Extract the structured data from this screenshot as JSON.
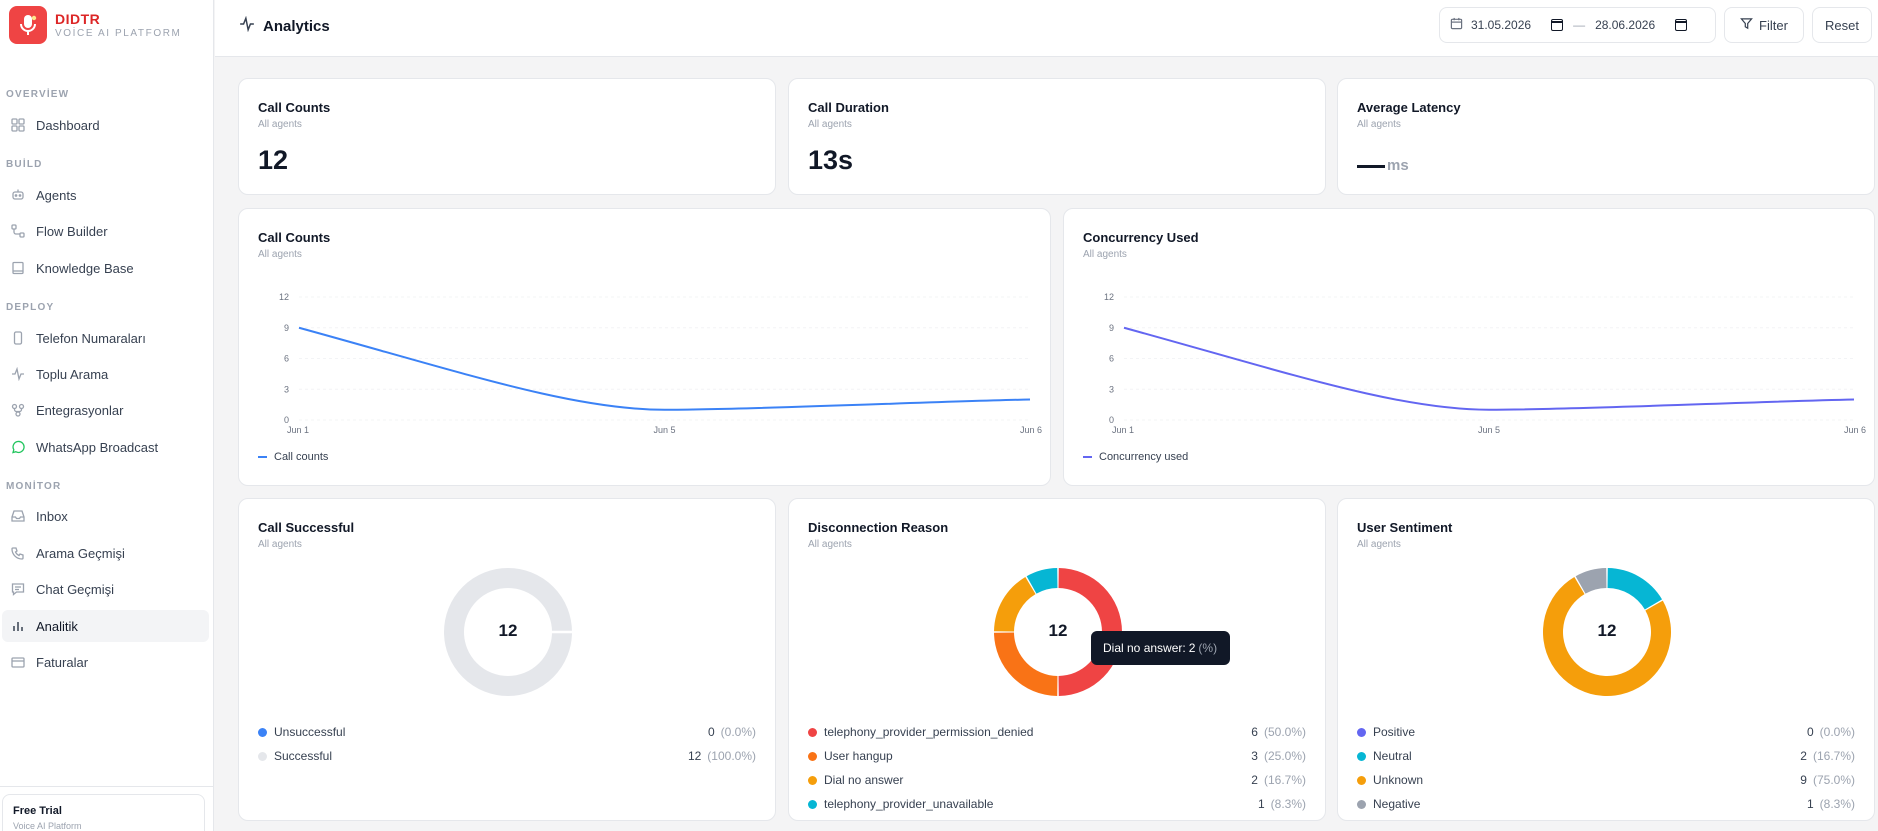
{
  "brand": {
    "name": "DIDTR",
    "subtitle": "VOİCE AI PLATFORM"
  },
  "sidebar": {
    "sections": [
      {
        "label": "OVERVİEW"
      },
      {
        "label": "BUİLD"
      },
      {
        "label": "DEPLOY"
      },
      {
        "label": "MONİTOR"
      }
    ],
    "items": [
      {
        "label": "Dashboard",
        "icon": "grid-icon"
      },
      {
        "label": "Agents",
        "icon": "bot-icon"
      },
      {
        "label": "Flow Builder",
        "icon": "flow-icon"
      },
      {
        "label": "Knowledge Base",
        "icon": "book-icon"
      },
      {
        "label": "Telefon Numaraları",
        "icon": "phone-device-icon"
      },
      {
        "label": "Toplu Arama",
        "icon": "activity-icon"
      },
      {
        "label": "Entegrasyonlar",
        "icon": "integration-icon"
      },
      {
        "label": "WhatsApp Broadcast",
        "icon": "whatsapp-icon"
      },
      {
        "label": "Inbox",
        "icon": "inbox-icon"
      },
      {
        "label": "Arama Geçmişi",
        "icon": "phone-icon"
      },
      {
        "label": "Chat Geçmişi",
        "icon": "chat-icon"
      },
      {
        "label": "Analitik",
        "icon": "bar-chart-icon"
      },
      {
        "label": "Faturalar",
        "icon": "card-icon"
      }
    ],
    "trial": {
      "title": "Free Trial",
      "subtitle": "Voice AI Platform"
    }
  },
  "header": {
    "title": "Analytics",
    "date_from": "31.05.2026",
    "date_sep": "—",
    "date_to": "28.06.2026",
    "filter_label": "Filter",
    "reset_label": "Reset"
  },
  "stats": [
    {
      "title": "Call Counts",
      "sub": "All agents",
      "value": "12"
    },
    {
      "title": "Call Duration",
      "sub": "All agents",
      "value": "13s"
    },
    {
      "title": "Average Latency",
      "sub": "All agents",
      "value": "",
      "unit": "ms"
    }
  ],
  "chart_data": [
    {
      "type": "line",
      "title": "Call Counts",
      "subtitle": "All agents",
      "x": [
        "Jun 1",
        "Jun 5",
        "Jun 6"
      ],
      "yticks": [
        0,
        3,
        6,
        9,
        12
      ],
      "ylim": [
        0,
        12
      ],
      "grid": true,
      "legend": "bottom-left",
      "series": [
        {
          "name": "Call counts",
          "color": "#3b82f6",
          "values": [
            9,
            1,
            2
          ]
        }
      ]
    },
    {
      "type": "line",
      "title": "Concurrency Used",
      "subtitle": "All agents",
      "x": [
        "Jun 1",
        "Jun 5",
        "Jun 6"
      ],
      "yticks": [
        0,
        3,
        6,
        9,
        12
      ],
      "ylim": [
        0,
        12
      ],
      "grid": true,
      "legend": "bottom-left",
      "series": [
        {
          "name": "Concurrency used",
          "color": "#6366f1",
          "values": [
            9,
            1,
            2
          ]
        }
      ]
    },
    {
      "type": "pie",
      "title": "Call Successful",
      "subtitle": "All agents",
      "center": "12",
      "slices": [
        {
          "label": "Unsuccessful",
          "value": 0,
          "pct": "(0.0%)",
          "color": "#3b82f6"
        },
        {
          "label": "Successful",
          "value": 12,
          "pct": "(100.0%)",
          "color": "#e5e7eb"
        }
      ]
    },
    {
      "type": "pie",
      "title": "Disconnection Reason",
      "subtitle": "All agents",
      "center": "12",
      "slices": [
        {
          "label": "telephony_provider_permission_denied",
          "value": 6,
          "pct": "(50.0%)",
          "color": "#ef4444"
        },
        {
          "label": "User hangup",
          "value": 3,
          "pct": "(25.0%)",
          "color": "#f97316"
        },
        {
          "label": "Dial no answer",
          "value": 2,
          "pct": "(16.7%)",
          "color": "#f59e0b"
        },
        {
          "label": "telephony_provider_unavailable",
          "value": 1,
          "pct": "(8.3%)",
          "color": "#06b6d4"
        }
      ],
      "tooltip": {
        "label": "Dial no answer:",
        "value": "2",
        "pct": "(%)"
      }
    },
    {
      "type": "pie",
      "title": "User Sentiment",
      "subtitle": "All agents",
      "center": "12",
      "slices": [
        {
          "label": "Positive",
          "value": 0,
          "pct": "(0.0%)",
          "color": "#6366f1"
        },
        {
          "label": "Neutral",
          "value": 2,
          "pct": "(16.7%)",
          "color": "#06b6d4"
        },
        {
          "label": "Unknown",
          "value": 9,
          "pct": "(75.0%)",
          "color": "#f59e0b"
        },
        {
          "label": "Negative",
          "value": 1,
          "pct": "(8.3%)",
          "color": "#9ca3af"
        }
      ]
    }
  ]
}
